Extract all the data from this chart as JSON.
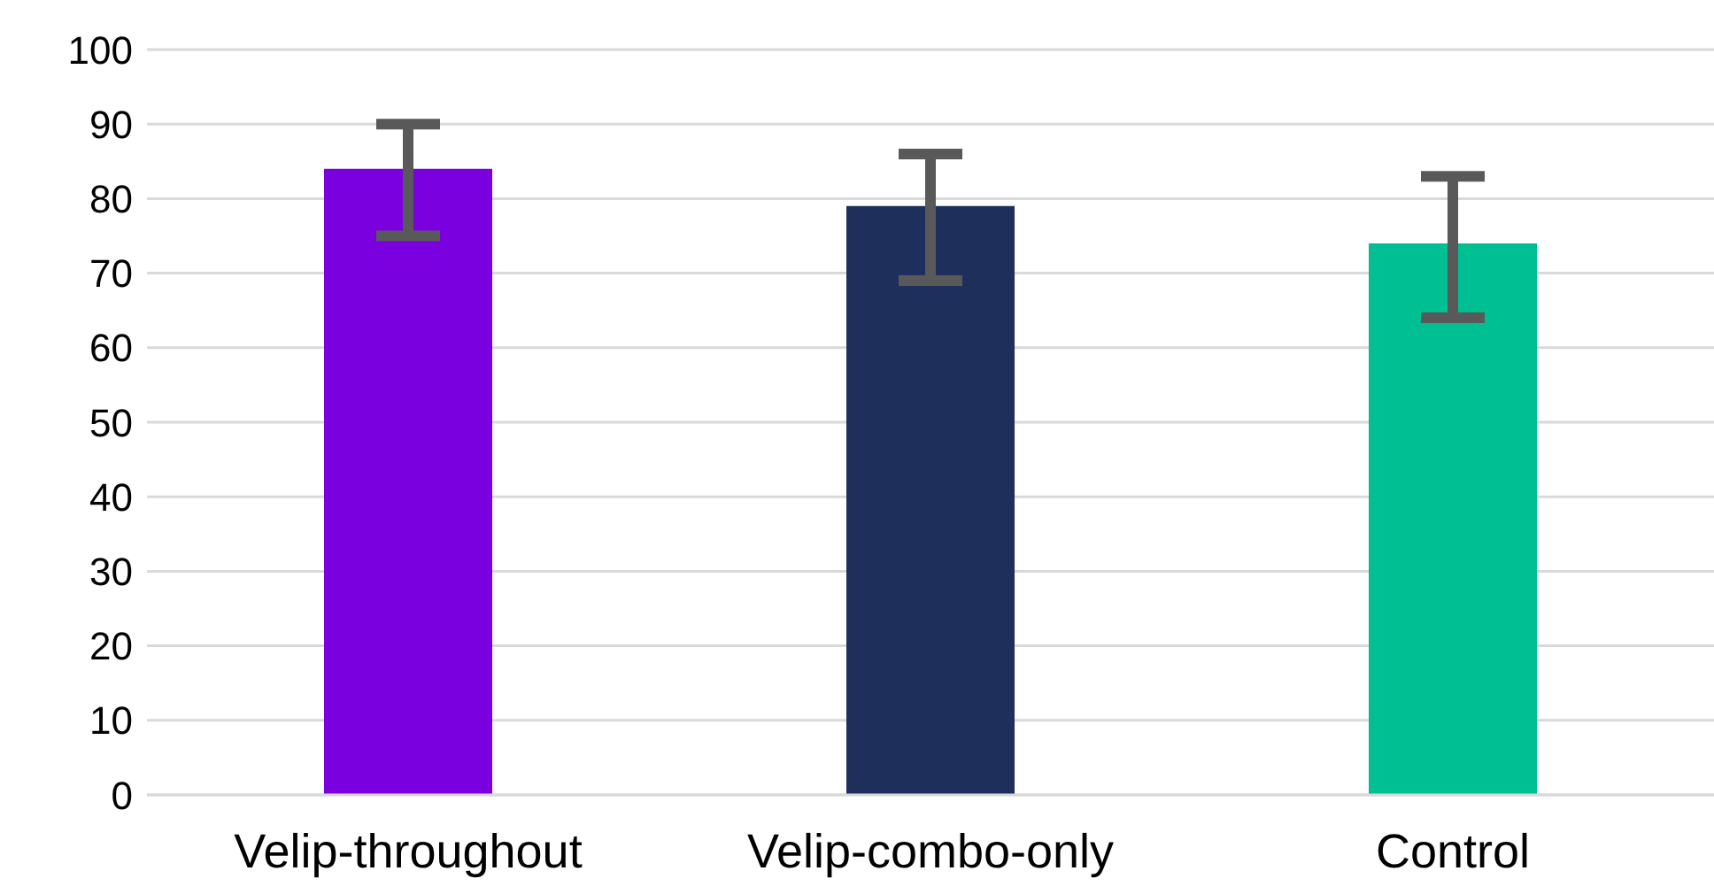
{
  "chart_data": {
    "type": "bar",
    "categories": [
      "Velip-throughout",
      "Velip-combo-only",
      "Control"
    ],
    "values": [
      84,
      79,
      74
    ],
    "colors": [
      "#7b00e0",
      "#1f2f5c",
      "#00bf93"
    ],
    "errors": [
      [
        75,
        90
      ],
      [
        69,
        86
      ],
      [
        64,
        83
      ]
    ],
    "ylim": [
      0,
      100
    ],
    "yticks": [
      0,
      10,
      20,
      30,
      40,
      50,
      60,
      70,
      80,
      90,
      100
    ],
    "grid": "y",
    "legend": false
  }
}
